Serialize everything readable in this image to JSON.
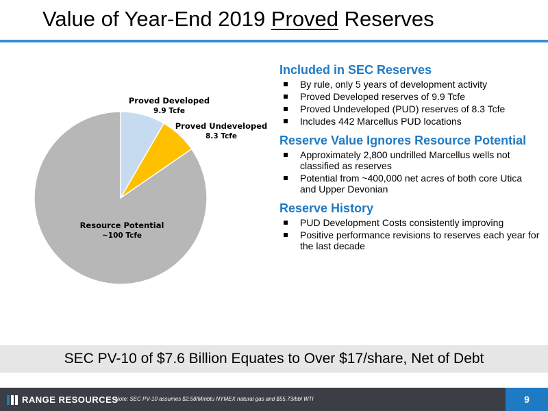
{
  "header": {
    "title_before": "Value of Year-End 2019 ",
    "title_underlined": "Proved",
    "title_after": " Reserves"
  },
  "chart_data": {
    "type": "pie",
    "unit": "Tcfe",
    "slices": [
      {
        "name": "Proved Developed",
        "value_label": "9.9 Tcfe",
        "value": 9.9,
        "color": "#c6dbf0"
      },
      {
        "name": "Proved Undeveloped",
        "value_label": "8.3 Tcfe",
        "value": 8.3,
        "color": "#ffc000"
      },
      {
        "name": "Resource Potential",
        "value_label": "~100 Tcfe",
        "value": 100,
        "color": "#b7b7b7"
      }
    ]
  },
  "sections": [
    {
      "heading": "Included in SEC Reserves",
      "bullets": [
        "By rule, only 5 years of development activity",
        "Proved Developed reserves of 9.9 Tcfe",
        "Proved Undeveloped (PUD) reserves of 8.3 Tcfe",
        "Includes 442 Marcellus PUD locations"
      ]
    },
    {
      "heading": "Reserve Value Ignores Resource Potential",
      "bullets": [
        "Approximately 2,800 undrilled Marcellus wells not classified as reserves",
        "Potential from ~400,000 net acres of both core Utica and Upper Devonian"
      ]
    },
    {
      "heading": "Reserve History",
      "bullets": [
        "PUD Development Costs consistently improving",
        "Positive performance revisions to reserves each year for the last decade"
      ]
    }
  ],
  "callout": "SEC PV-10 of $7.6 Billion Equates to Over $17/share, Net of Debt",
  "footer": {
    "logo_text": "RANGE RESOURCES",
    "note": "Note: SEC PV-10 assumes $2.58/Mmbtu NYMEX natural gas and $55.73/bbl WTI",
    "page_number": "9"
  },
  "colors": {
    "accent_blue": "#1f7ac4",
    "title_rule": "#3a8dd5",
    "footer_bg": "#3b3f45"
  }
}
